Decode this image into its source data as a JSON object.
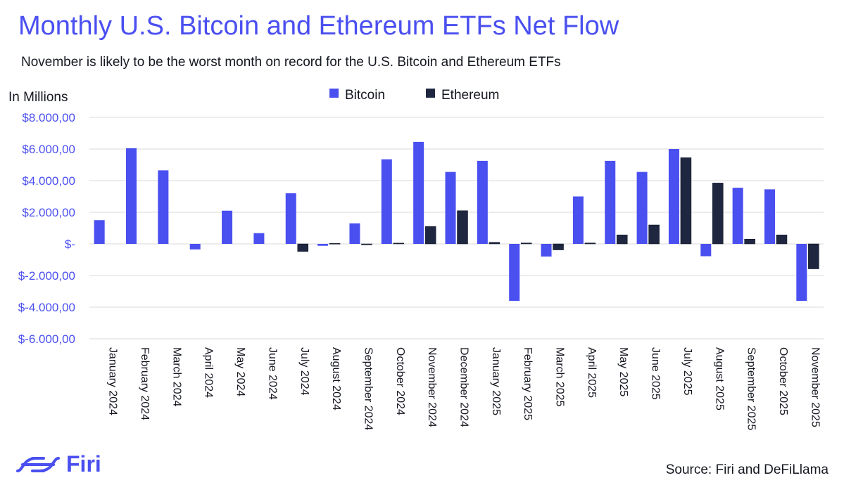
{
  "chart_data": {
    "type": "bar",
    "title": "Monthly U.S. Bitcoin and Ethereum ETFs Net Flow",
    "subtitle": "November is likely to be the worst month on record for the U.S. Bitcoin and Ethereum ETFs",
    "ylabel": "In Millions",
    "ylim": [
      -6000,
      8000
    ],
    "yticks": [
      8000,
      6000,
      4000,
      2000,
      0,
      -2000,
      -4000,
      -6000
    ],
    "ytick_labels": [
      "$8.000,00",
      "$6.000,00",
      "$4.000,00",
      "$2.000,00",
      "$-",
      "$-2.000,00",
      "$-4.000,00",
      "$-6.000,00"
    ],
    "grid": true,
    "legend_position": "top-center",
    "categories": [
      "January 2024",
      "February 2024",
      "March 2024",
      "April 2024",
      "May 2024",
      "June 2024",
      "July 2024",
      "August 2024",
      "September 2024",
      "October 2024",
      "November 2024",
      "December 2024",
      "January 2025",
      "February 2025",
      "March 2025",
      "April 2025",
      "May 2025",
      "June 2025",
      "July 2025",
      "August 2025",
      "September 2025",
      "October 2025",
      "November 2025"
    ],
    "series": [
      {
        "name": "Bitcoin",
        "color": "#4a4ff0",
        "values": [
          1500,
          6050,
          4650,
          -350,
          2100,
          680,
          3200,
          -120,
          1300,
          5350,
          6450,
          4550,
          5250,
          -3600,
          -800,
          3000,
          5250,
          4550,
          6000,
          -780,
          3550,
          3450,
          -3600
        ]
      },
      {
        "name": "Ethereum",
        "color": "#1f2740",
        "values": [
          0,
          0,
          0,
          0,
          0,
          0,
          -480,
          30,
          -60,
          50,
          1100,
          2100,
          100,
          60,
          -380,
          60,
          570,
          1200,
          5450,
          3850,
          300,
          570,
          -1580
        ]
      }
    ]
  },
  "logo": {
    "text": "Firi"
  },
  "source": "Source: Firi and DeFiLlama",
  "colors": {
    "accent": "#4a4ff0",
    "dark": "#1f2740"
  }
}
